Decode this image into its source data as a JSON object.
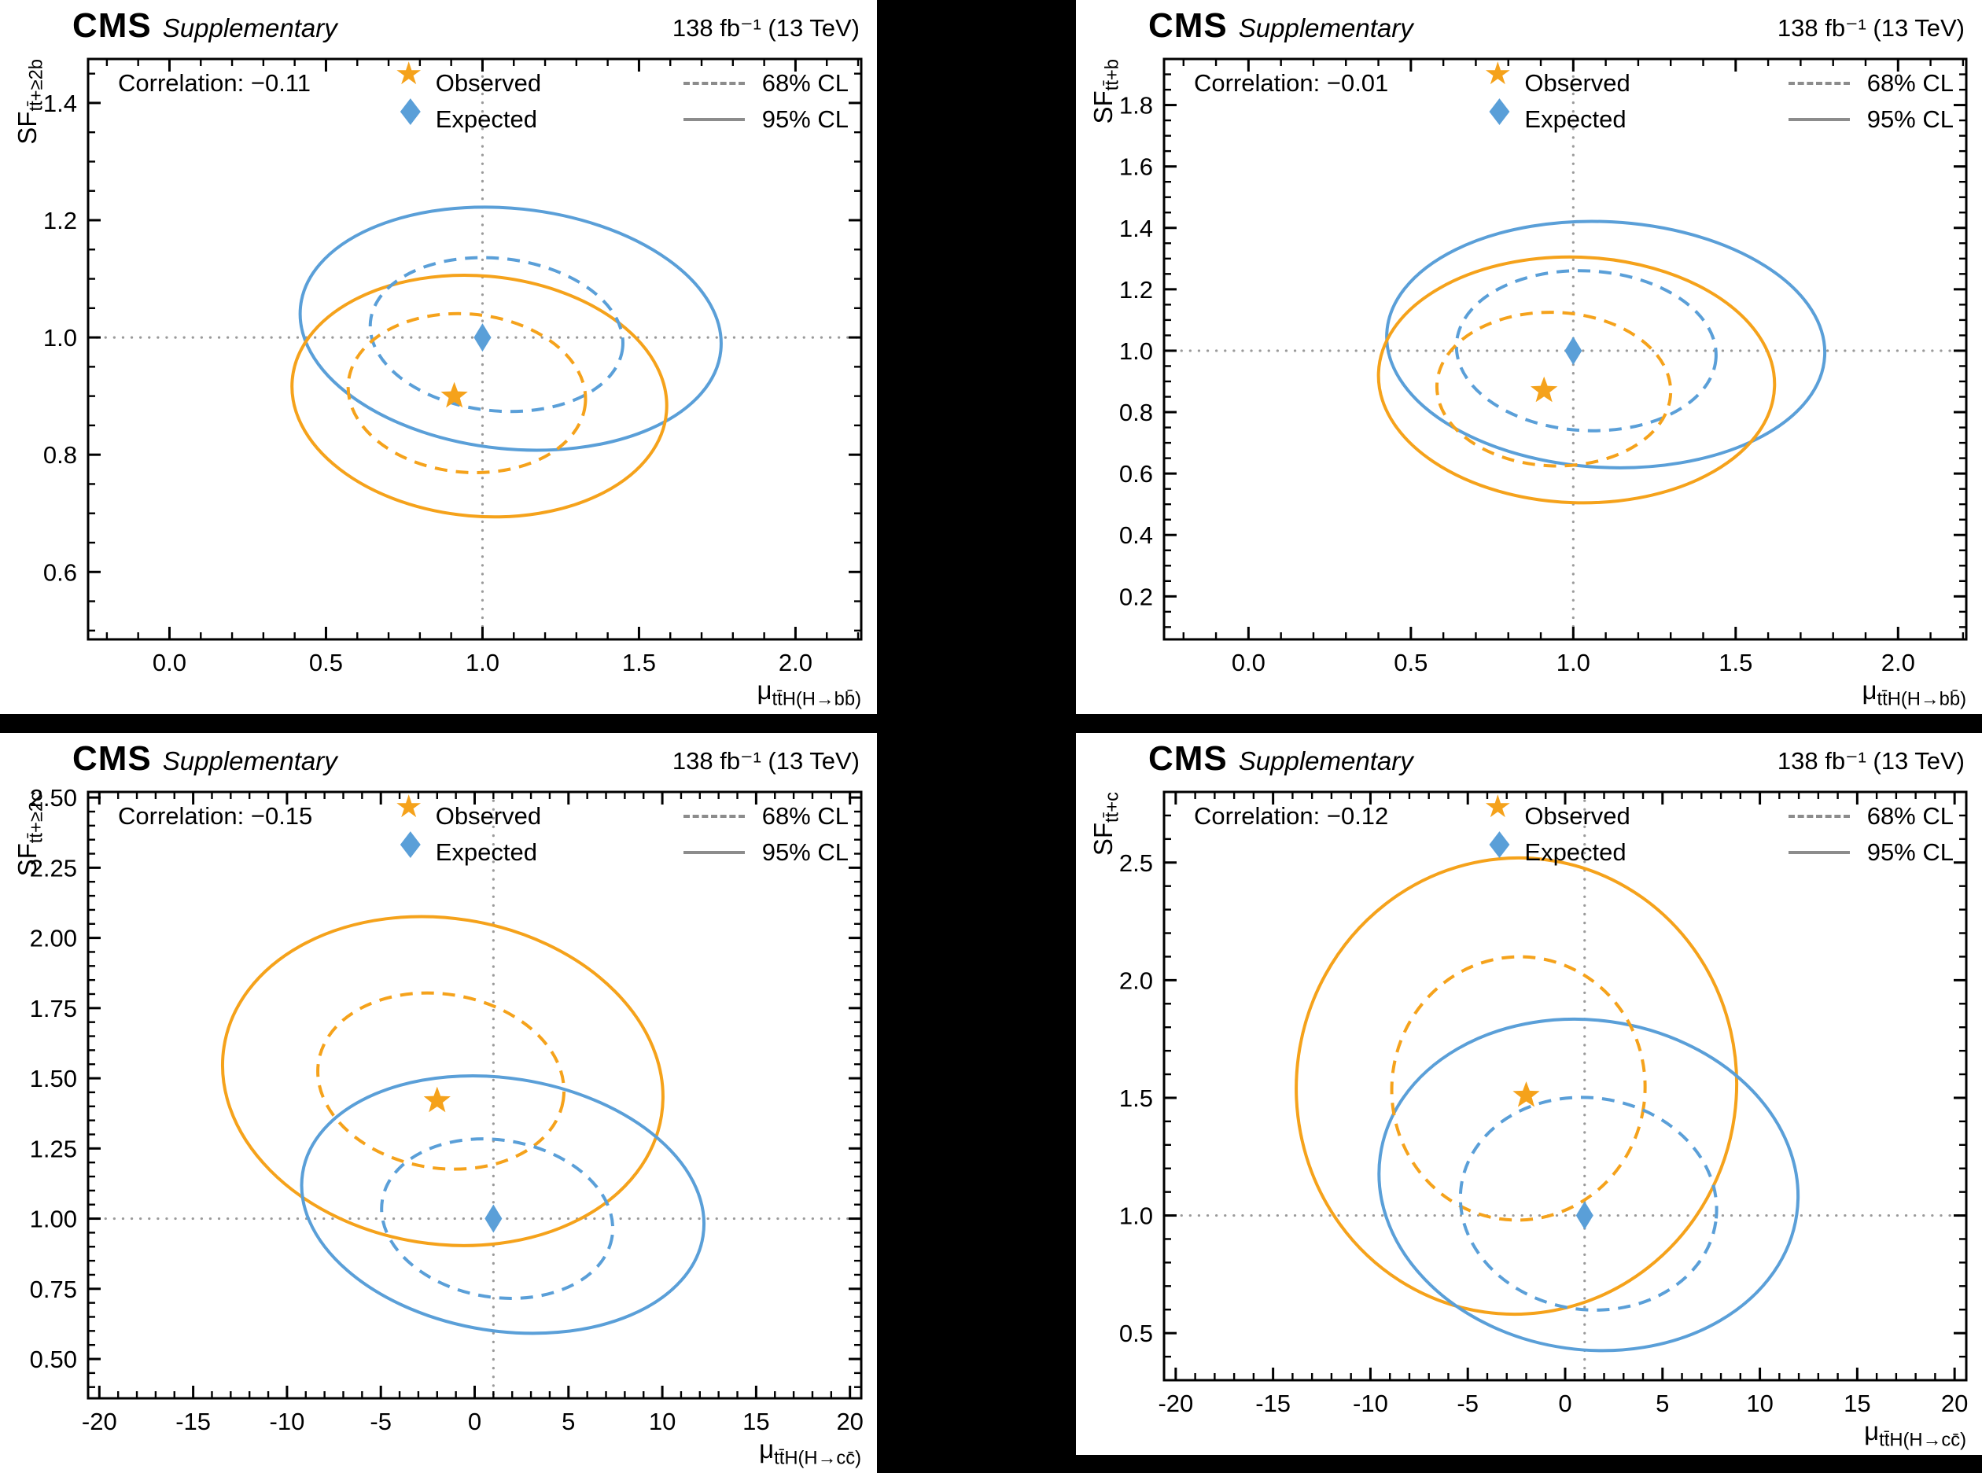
{
  "colors": {
    "observed": "#f5a21b",
    "expected": "#5a9fd8",
    "guide": "#9a9a9a",
    "legend_line": "#8c8c8c"
  },
  "chart_data": [
    {
      "type": "contour",
      "header": {
        "experiment": "CMS",
        "supplementary": "Supplementary",
        "lumi": "138 fb⁻¹ (13 TeV)"
      },
      "correlation_label": "Correlation: −0.11",
      "correlation": -0.11,
      "legend": {
        "observed": "Observed",
        "expected": "Expected",
        "cl68": "68% CL",
        "cl95": "95% CL",
        "observed_marker": "★",
        "expected_marker": "◆"
      },
      "axes": {
        "x": {
          "label_main": "μ",
          "label_sub": "tt̄H(H→bb̄)",
          "lim": [
            -0.26,
            2.21
          ],
          "ticks": [
            0,
            0.5,
            1,
            1.5,
            2
          ],
          "tick_labels": [
            "0.0",
            "0.5",
            "1.0",
            "1.5",
            "2.0"
          ],
          "minor_per_major": 5
        },
        "y": {
          "label_main": "SF",
          "label_sub": "tt̄+≥2b",
          "lim": [
            0.485,
            1.475
          ],
          "ticks": [
            0.6,
            0.8,
            1.0,
            1.2,
            1.4
          ],
          "tick_labels": [
            "0.6",
            "0.8",
            "1.0",
            "1.2",
            "1.4"
          ],
          "minor_per_major": 4
        }
      },
      "crosshair": {
        "x": 1.0,
        "y": 1.0
      },
      "observed_point": {
        "x": 0.91,
        "y": 0.9
      },
      "expected_point": {
        "x": 1.0,
        "y": 1.0
      },
      "contours": [
        {
          "series": "expected",
          "cl": "95% CL",
          "style": "solid",
          "cx": 1.09,
          "cy": 1.015,
          "rx": 0.675,
          "ry": 0.205,
          "rot": 6
        },
        {
          "series": "observed",
          "cl": "95% CL",
          "style": "solid",
          "cx": 0.99,
          "cy": 0.9,
          "rx": 0.6,
          "ry": 0.205,
          "rot": 5
        },
        {
          "series": "expected",
          "cl": "68% CL",
          "style": "dashed",
          "cx": 1.045,
          "cy": 1.005,
          "rx": 0.405,
          "ry": 0.13,
          "rot": 6
        },
        {
          "series": "observed",
          "cl": "68% CL",
          "style": "dashed",
          "cx": 0.95,
          "cy": 0.905,
          "rx": 0.38,
          "ry": 0.135,
          "rot": 5
        }
      ]
    },
    {
      "type": "contour",
      "header": {
        "experiment": "CMS",
        "supplementary": "Supplementary",
        "lumi": "138 fb⁻¹ (13 TeV)"
      },
      "correlation_label": "Correlation: −0.01",
      "correlation": -0.01,
      "legend": {
        "observed": "Observed",
        "expected": "Expected",
        "cl68": "68% CL",
        "cl95": "95% CL",
        "observed_marker": "★",
        "expected_marker": "◆"
      },
      "axes": {
        "x": {
          "label_main": "μ",
          "label_sub": "tt̄H(H→bb̄)",
          "lim": [
            -0.26,
            2.21
          ],
          "ticks": [
            0,
            0.5,
            1,
            1.5,
            2
          ],
          "tick_labels": [
            "0.0",
            "0.5",
            "1.0",
            "1.5",
            "2.0"
          ],
          "minor_per_major": 5
        },
        "y": {
          "label_main": "SF",
          "label_sub": "tt̄+b",
          "lim": [
            0.06,
            1.95
          ],
          "ticks": [
            0.2,
            0.4,
            0.6,
            0.8,
            1.0,
            1.2,
            1.4,
            1.6,
            1.8
          ],
          "tick_labels": [
            "0.2",
            "0.4",
            "0.6",
            "0.8",
            "1.0",
            "1.2",
            "1.4",
            "1.6",
            "1.8"
          ],
          "minor_per_major": 4
        }
      },
      "crosshair": {
        "x": 1.0,
        "y": 1.0
      },
      "observed_point": {
        "x": 0.91,
        "y": 0.87
      },
      "expected_point": {
        "x": 1.0,
        "y": 1.0
      },
      "contours": [
        {
          "series": "expected",
          "cl": "95% CL",
          "style": "solid",
          "cx": 1.1,
          "cy": 1.02,
          "rx": 0.675,
          "ry": 0.4,
          "rot": 3
        },
        {
          "series": "observed",
          "cl": "95% CL",
          "style": "solid",
          "cx": 1.01,
          "cy": 0.905,
          "rx": 0.61,
          "ry": 0.4,
          "rot": 2
        },
        {
          "series": "expected",
          "cl": "68% CL",
          "style": "dashed",
          "cx": 1.04,
          "cy": 1.0,
          "rx": 0.4,
          "ry": 0.26,
          "rot": 3
        },
        {
          "series": "observed",
          "cl": "68% CL",
          "style": "dashed",
          "cx": 0.94,
          "cy": 0.875,
          "rx": 0.36,
          "ry": 0.25,
          "rot": 2
        }
      ]
    },
    {
      "type": "contour",
      "header": {
        "experiment": "CMS",
        "supplementary": "Supplementary",
        "lumi": "138 fb⁻¹ (13 TeV)"
      },
      "correlation_label": "Correlation: −0.15",
      "correlation": -0.15,
      "legend": {
        "observed": "Observed",
        "expected": "Expected",
        "cl68": "68% CL",
        "cl95": "95% CL",
        "observed_marker": "★",
        "expected_marker": "◆"
      },
      "axes": {
        "x": {
          "label_main": "μ",
          "label_sub": "tt̄H(H→cc̄)",
          "lim": [
            -20.6,
            20.6
          ],
          "ticks": [
            -20,
            -15,
            -10,
            -5,
            0,
            5,
            10,
            15,
            20
          ],
          "tick_labels": [
            "-20",
            "-15",
            "-10",
            "-5",
            "0",
            "5",
            "10",
            "15",
            "20"
          ],
          "minor_per_major": 5
        },
        "y": {
          "label_main": "SF",
          "label_sub": "tt̄+≥2c",
          "lim": [
            0.36,
            2.52
          ],
          "ticks": [
            0.5,
            0.75,
            1.0,
            1.25,
            1.5,
            1.75,
            2.0,
            2.25,
            2.5
          ],
          "tick_labels": [
            "0.50",
            "0.75",
            "1.00",
            "1.25",
            "1.50",
            "1.75",
            "2.00",
            "2.25",
            "2.50"
          ],
          "minor_per_major": 5
        }
      },
      "crosshair": {
        "x": 1.0,
        "y": 1.0
      },
      "observed_point": {
        "x": -2.0,
        "y": 1.42
      },
      "expected_point": {
        "x": 1.0,
        "y": 1.0
      },
      "contours": [
        {
          "series": "observed",
          "cl": "95% CL",
          "style": "solid",
          "cx": -1.7,
          "cy": 1.49,
          "rx": 11.8,
          "ry": 0.58,
          "rot": 9
        },
        {
          "series": "expected",
          "cl": "95% CL",
          "style": "solid",
          "cx": 1.5,
          "cy": 1.05,
          "rx": 10.8,
          "ry": 0.45,
          "rot": 9
        },
        {
          "series": "observed",
          "cl": "68% CL",
          "style": "dashed",
          "cx": -1.8,
          "cy": 1.49,
          "rx": 6.6,
          "ry": 0.31,
          "rot": 9
        },
        {
          "series": "expected",
          "cl": "68% CL",
          "style": "dashed",
          "cx": 1.2,
          "cy": 1.0,
          "rx": 6.2,
          "ry": 0.28,
          "rot": 9
        }
      ]
    },
    {
      "type": "contour",
      "header": {
        "experiment": "CMS",
        "supplementary": "Supplementary",
        "lumi": "138 fb⁻¹ (13 TeV)"
      },
      "correlation_label": "Correlation: −0.12",
      "correlation": -0.12,
      "legend": {
        "observed": "Observed",
        "expected": "Expected",
        "cl68": "68% CL",
        "cl95": "95% CL",
        "observed_marker": "★",
        "expected_marker": "◆"
      },
      "axes": {
        "x": {
          "label_main": "μ",
          "label_sub": "tt̄H(H→cc̄)",
          "lim": [
            -20.6,
            20.6
          ],
          "ticks": [
            -20,
            -15,
            -10,
            -5,
            0,
            5,
            10,
            15,
            20
          ],
          "tick_labels": [
            "-20",
            "-15",
            "-10",
            "-5",
            "0",
            "5",
            "10",
            "15",
            "20"
          ],
          "minor_per_major": 5
        },
        "y": {
          "label_main": "SF",
          "label_sub": "tt̄+c",
          "lim": [
            0.3,
            2.8
          ],
          "ticks": [
            0.5,
            1.0,
            1.5,
            2.0,
            2.5
          ],
          "tick_labels": [
            "0.5",
            "1.0",
            "1.5",
            "2.0",
            "2.5"
          ],
          "minor_per_major": 5
        }
      },
      "crosshair": {
        "x": 1.0,
        "y": 1.0
      },
      "observed_point": {
        "x": -2.0,
        "y": 1.51
      },
      "expected_point": {
        "x": 1.0,
        "y": 1.0
      },
      "contours": [
        {
          "series": "observed",
          "cl": "95% CL",
          "style": "solid",
          "cx": -2.5,
          "cy": 1.55,
          "rx": 11.3,
          "ry": 0.97,
          "rot": 8
        },
        {
          "series": "expected",
          "cl": "95% CL",
          "style": "solid",
          "cx": 1.2,
          "cy": 1.13,
          "rx": 10.8,
          "ry": 0.7,
          "rot": 8
        },
        {
          "series": "observed",
          "cl": "68% CL",
          "style": "dashed",
          "cx": -2.4,
          "cy": 1.54,
          "rx": 6.5,
          "ry": 0.56,
          "rot": 8
        },
        {
          "series": "expected",
          "cl": "68% CL",
          "style": "dashed",
          "cx": 1.2,
          "cy": 1.05,
          "rx": 6.6,
          "ry": 0.45,
          "rot": 8
        }
      ]
    }
  ]
}
